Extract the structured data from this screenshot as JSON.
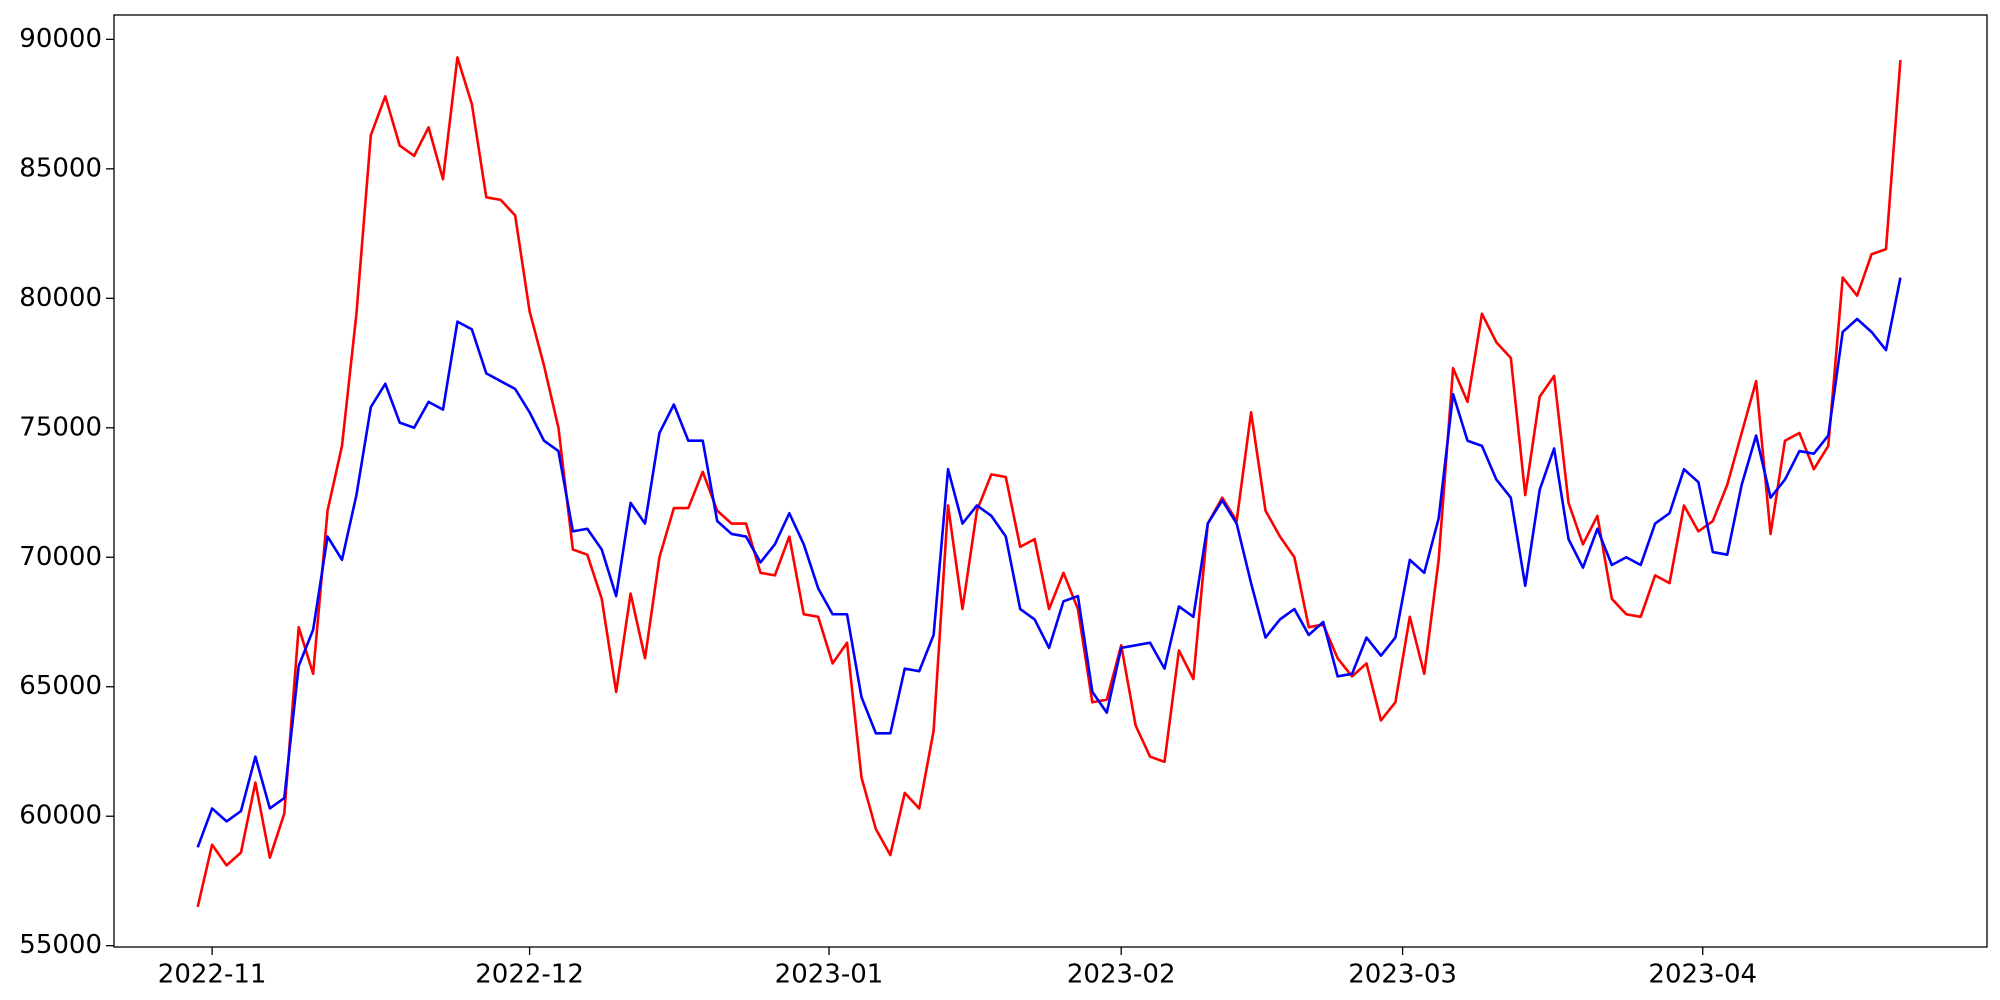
{
  "chart_data": {
    "type": "line",
    "xlim": [
      -5.8,
      124
    ],
    "xticks": [
      {
        "value": 1,
        "label": "2022-11"
      },
      {
        "value": 23,
        "label": "2022-12"
      },
      {
        "value": 43.75,
        "label": "2023-01"
      },
      {
        "value": 64,
        "label": "2023-02"
      },
      {
        "value": 83.5,
        "label": "2023-03"
      },
      {
        "value": 104.3,
        "label": "2023-04"
      }
    ],
    "ylim": [
      54950,
      90940
    ],
    "yticks": [
      55000,
      60000,
      65000,
      70000,
      75000,
      80000,
      85000,
      90000
    ],
    "grid": false,
    "series": [
      {
        "color": "#ff0000",
        "values": [
          56500,
          58900,
          58100,
          58600,
          61300,
          58400,
          60100,
          67300,
          65500,
          71800,
          74300,
          79400,
          86300,
          87800,
          85900,
          85500,
          86600,
          84600,
          89300,
          87500,
          83900,
          83800,
          83200,
          79500,
          77400,
          75000,
          70300,
          70100,
          68400,
          64800,
          68600,
          66100,
          70000,
          71900,
          71900,
          73300,
          71800,
          71300,
          71300,
          69400,
          69300,
          70800,
          67800,
          67700,
          65900,
          66700,
          61500,
          59500,
          58500,
          60900,
          60300,
          63300,
          72000,
          68000,
          71800,
          73200,
          73100,
          70400,
          70700,
          68000,
          69400,
          68000,
          64400,
          64500,
          66600,
          63500,
          62300,
          62100,
          66400,
          65300,
          71300,
          72300,
          71400,
          75600,
          71800,
          70800,
          70000,
          67300,
          67400,
          66100,
          65400,
          65900,
          63700,
          64400,
          67700,
          65500,
          69900,
          77300,
          76000,
          79400,
          78300,
          77700,
          72400,
          76200,
          77000,
          72100,
          70500,
          71600,
          68400,
          67800,
          67700,
          69300,
          69000,
          72000,
          71000,
          71400,
          72800,
          74800,
          76800,
          70900,
          74500,
          74800,
          73400,
          74300,
          80800,
          80100,
          81700,
          81900,
          89200
        ]
      },
      {
        "color": "#0000ff",
        "values": [
          58800,
          60300,
          59800,
          60200,
          62300,
          60300,
          60700,
          65800,
          67200,
          70800,
          69900,
          72400,
          75800,
          76700,
          75200,
          75000,
          76000,
          75700,
          79100,
          78800,
          77100,
          76800,
          76500,
          75600,
          74500,
          74100,
          71000,
          71100,
          70300,
          68500,
          72100,
          71300,
          74800,
          75900,
          74500,
          74500,
          71400,
          70900,
          70800,
          69800,
          70500,
          71700,
          70500,
          68800,
          67800,
          67800,
          64600,
          63200,
          63200,
          65700,
          65600,
          67000,
          73400,
          71300,
          72000,
          71600,
          70800,
          68000,
          67600,
          66500,
          68300,
          68500,
          64800,
          64000,
          66500,
          66600,
          66700,
          65700,
          68100,
          67700,
          71300,
          72200,
          71300,
          69000,
          66900,
          67600,
          68000,
          67000,
          67500,
          65400,
          65500,
          66900,
          66200,
          66900,
          69900,
          69400,
          71500,
          76300,
          74500,
          74300,
          73000,
          72300,
          68900,
          72600,
          74200,
          70700,
          69600,
          71100,
          69700,
          70000,
          69700,
          71300,
          71700,
          73400,
          72900,
          70200,
          70100,
          72800,
          74700,
          72300,
          73000,
          74100,
          74000,
          74700,
          78700,
          79200,
          78700,
          78000,
          80800
        ]
      }
    ]
  }
}
